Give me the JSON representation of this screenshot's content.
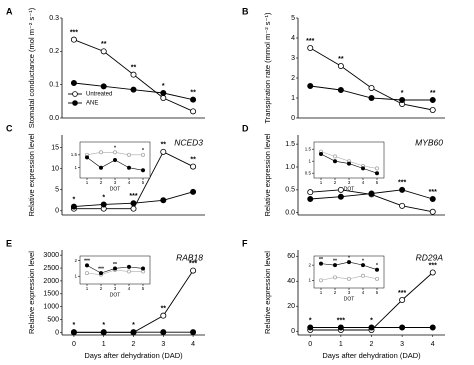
{
  "chart_data": [
    {
      "type": "line",
      "panel": "A",
      "ylabel": "Stomatal conductance (mol m⁻² s⁻¹)",
      "x": [
        0,
        1,
        2,
        3,
        4
      ],
      "xlim": [
        -0.4,
        4.4
      ],
      "ylim": [
        0,
        0.3
      ],
      "yticks": [
        {
          "value": 0,
          "label": "0.0"
        },
        0.1,
        0.2,
        0.3
      ],
      "legend": "lower left",
      "series": [
        {
          "name": "Untreated",
          "color": "#000000",
          "marker": "open",
          "values": [
            0.235,
            0.2,
            0.13,
            0.06,
            0.02
          ]
        },
        {
          "name": "ANE",
          "color": "#000000",
          "marker": "filled",
          "values": [
            0.105,
            0.095,
            0.085,
            0.075,
            0.055
          ]
        }
      ],
      "annotations": [
        "***",
        "**",
        "**",
        "*",
        "**"
      ]
    },
    {
      "type": "line",
      "panel": "B",
      "ylabel": "Transpiration rate (mmol m⁻² s⁻¹)",
      "x": [
        0,
        1,
        2,
        3,
        4
      ],
      "xlim": [
        -0.4,
        4.4
      ],
      "ylim": [
        0,
        5
      ],
      "yticks": [
        0,
        1,
        2,
        3,
        4,
        5
      ],
      "series": [
        {
          "color": "#000000",
          "marker": "open",
          "values": [
            3.5,
            2.6,
            1.5,
            0.7,
            0.4
          ]
        },
        {
          "color": "#000000",
          "marker": "filled",
          "values": [
            1.6,
            1.4,
            1.0,
            0.9,
            0.9
          ]
        }
      ],
      "annotations": [
        "***",
        "**",
        null,
        "*",
        "**"
      ]
    },
    {
      "type": "line",
      "panel": "C",
      "title": "NCED3",
      "ylabel": "Relative expression level",
      "x": [
        0,
        1,
        2,
        3,
        4
      ],
      "xlim": [
        -0.4,
        4.4
      ],
      "ylim": [
        -1,
        18
      ],
      "yticks": [
        0,
        5,
        10,
        15
      ],
      "series": [
        {
          "color": "#000000",
          "marker": "open",
          "values": [
            0.5,
            0.5,
            0.5,
            14,
            10.5
          ]
        },
        {
          "color": "#000000",
          "marker": "filled",
          "values": [
            1,
            1.5,
            1.8,
            2.5,
            4.5
          ]
        }
      ],
      "annotations": [
        "*",
        "*",
        "***",
        "**",
        "**"
      ]
    },
    {
      "type": "line",
      "panel": "D",
      "title": "MYB60",
      "ylabel": "Relative expression level",
      "x": [
        0,
        1,
        2,
        3,
        4
      ],
      "xlim": [
        -0.4,
        4.4
      ],
      "ylim": [
        -0.05,
        1.7
      ],
      "yticks": [
        {
          "value": 0,
          "label": "0.0"
        },
        0.5,
        {
          "value": 1,
          "label": "1.0"
        },
        1.5
      ],
      "series": [
        {
          "color": "#000000",
          "marker": "open",
          "values": [
            0.45,
            0.5,
            0.4,
            0.15,
            0.02
          ]
        },
        {
          "color": "#000000",
          "marker": "filled",
          "values": [
            0.3,
            0.35,
            0.42,
            0.5,
            0.3
          ]
        }
      ],
      "annotations": [
        null,
        null,
        null,
        "***",
        "***"
      ]
    },
    {
      "type": "line",
      "panel": "E",
      "title": "RAB18",
      "ylabel": "Relative expression level",
      "xlabel": "Days after dehydration (DAD)",
      "x": [
        0,
        1,
        2,
        3,
        4
      ],
      "xlim": [
        -0.4,
        4.4
      ],
      "ylim": [
        -100,
        3200
      ],
      "xticks": [
        0,
        1,
        2,
        3,
        4
      ],
      "yticks": [
        0,
        500,
        1000,
        1500,
        2000,
        2500,
        3000
      ],
      "series": [
        {
          "color": "#000000",
          "marker": "open",
          "values": [
            1,
            1,
            1,
            650,
            2400
          ]
        },
        {
          "color": "#000000",
          "marker": "filled",
          "values": [
            10,
            10,
            10,
            10,
            10
          ]
        }
      ],
      "annotations": [
        "*",
        "*",
        "*",
        "**",
        "***"
      ]
    },
    {
      "type": "line",
      "panel": "F",
      "title": "RD29A",
      "ylabel": "Relative expression level",
      "xlabel": "Days after dehydration (DAD)",
      "x": [
        0,
        1,
        2,
        3,
        4
      ],
      "xlim": [
        -0.4,
        4.4
      ],
      "ylim": [
        -3,
        65
      ],
      "xticks": [
        0,
        1,
        2,
        3,
        4
      ],
      "yticks": [
        0,
        20,
        40,
        60
      ],
      "series": [
        {
          "color": "#000000",
          "marker": "open",
          "values": [
            1,
            1,
            1,
            25,
            47
          ]
        },
        {
          "color": "#000000",
          "marker": "filled",
          "values": [
            3,
            3,
            3,
            3,
            3
          ]
        }
      ],
      "annotations": [
        "*",
        "***",
        "*",
        "***",
        "***"
      ]
    },
    {
      "type": "inset",
      "xlabel": "DOT",
      "x": [
        1,
        2,
        3,
        4,
        5
      ],
      "xlim": [
        0.5,
        5.5
      ],
      "ylim": [
        0.6,
        2
      ],
      "xticks": [
        1,
        2,
        3,
        4,
        5
      ],
      "yticks": [
        1,
        1.5
      ],
      "series": [
        {
          "color": "#aaaaaa",
          "marker": "open",
          "values": [
            1.5,
            1.6,
            1.6,
            1.5,
            1.5
          ]
        },
        {
          "color": "#000000",
          "marker": "filled",
          "values": [
            1.4,
            1.0,
            1.3,
            1.0,
            0.9
          ]
        }
      ],
      "annotations": [
        null,
        null,
        "*",
        null,
        "*"
      ]
    },
    {
      "type": "inset",
      "xlabel": "DOT",
      "x": [
        1,
        2,
        3,
        4,
        5
      ],
      "xlim": [
        0.5,
        5.5
      ],
      "ylim": [
        0.3,
        1.8
      ],
      "xticks": [
        1,
        2,
        3,
        4,
        5
      ],
      "yticks": [
        0.5,
        1,
        1.5
      ],
      "series": [
        {
          "color": "#aaaaaa",
          "marker": "open",
          "values": [
            1.4,
            1.2,
            1.0,
            0.8,
            0.7
          ]
        },
        {
          "color": "#000000",
          "marker": "filled",
          "values": [
            1.3,
            1.0,
            0.9,
            0.7,
            0.5
          ]
        }
      ],
      "annotations": [
        null,
        null,
        null,
        null,
        null
      ]
    },
    {
      "type": "inset",
      "xlabel": "DOT",
      "x": [
        1,
        2,
        3,
        4,
        5
      ],
      "xlim": [
        0.5,
        5.5
      ],
      "ylim": [
        0.5,
        2.3
      ],
      "xticks": [
        1,
        2,
        3,
        4,
        5
      ],
      "yticks": [
        1,
        2
      ],
      "series": [
        {
          "color": "#aaaaaa",
          "marker": "open",
          "values": [
            1.2,
            1.1,
            1.4,
            1.3,
            1.3
          ]
        },
        {
          "color": "#000000",
          "marker": "filled",
          "values": [
            1.7,
            1.2,
            1.5,
            1.6,
            1.5
          ]
        }
      ],
      "annotations": [
        "***",
        "***",
        "**",
        null,
        null
      ]
    },
    {
      "type": "inset",
      "xlabel": "DOT",
      "x": [
        1,
        2,
        3,
        4,
        5
      ],
      "xlim": [
        0.5,
        5.5
      ],
      "ylim": [
        0.5,
        2.6
      ],
      "xticks": [
        1,
        2,
        3,
        4,
        5
      ],
      "yticks": [
        1,
        2
      ],
      "series": [
        {
          "color": "#aaaaaa",
          "marker": "open",
          "values": [
            1.0,
            1.2,
            1.1,
            1.3,
            1.1
          ]
        },
        {
          "color": "#000000",
          "marker": "filled",
          "values": [
            2.1,
            2.0,
            2.2,
            2.0,
            1.7
          ]
        }
      ],
      "annotations": [
        "**",
        "**",
        "*",
        "*",
        "*"
      ]
    }
  ]
}
